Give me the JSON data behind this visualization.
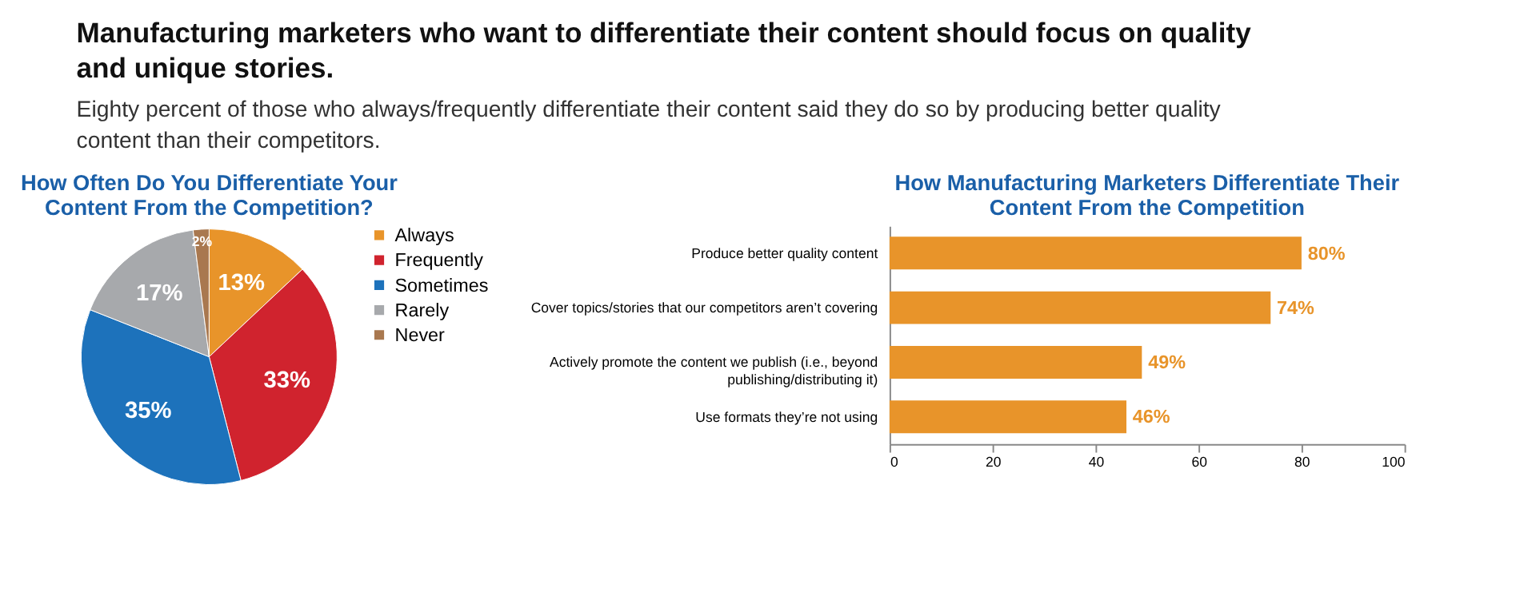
{
  "chart_data": [
    {
      "type": "other",
      "title": "Manufacturing marketers who want to differentiate their content should focus on quality and unique stories.",
      "subtitle": "Eighty percent of those who always/frequently differentiate their content said they do so by producing better quality content than their competitors."
    },
    {
      "type": "pie",
      "title": "How Often Do You Differentiate Your Content From the Competition?",
      "categories": [
        "Always",
        "Frequently",
        "Sometimes",
        "Rarely",
        "Never"
      ],
      "values": [
        13,
        33,
        35,
        17,
        2
      ],
      "colors": [
        "#e8942a",
        "#d0232e",
        "#1d72bb",
        "#a7a9ac",
        "#a9784f"
      ],
      "value_labels": [
        "13%",
        "33%",
        "35%",
        "17%",
        "2%"
      ],
      "legend": "right"
    },
    {
      "type": "bar",
      "orientation": "horizontal",
      "title": "How Manufacturing Marketers Differentiate Their Content From the Competition",
      "categories": [
        "Produce better quality content",
        "Cover topics/stories that our competitors aren’t covering",
        "Actively promote the content we publish (i.e., beyond publishing/distributing it)",
        "Use formats they’re not using"
      ],
      "values": [
        80,
        74,
        49,
        46
      ],
      "color": "#e8942a",
      "value_labels": [
        "80%",
        "74%",
        "49%",
        "46%"
      ],
      "xlim": [
        0,
        100
      ],
      "xticks": [
        0,
        20,
        40,
        60,
        80,
        100
      ],
      "grid": false
    }
  ]
}
